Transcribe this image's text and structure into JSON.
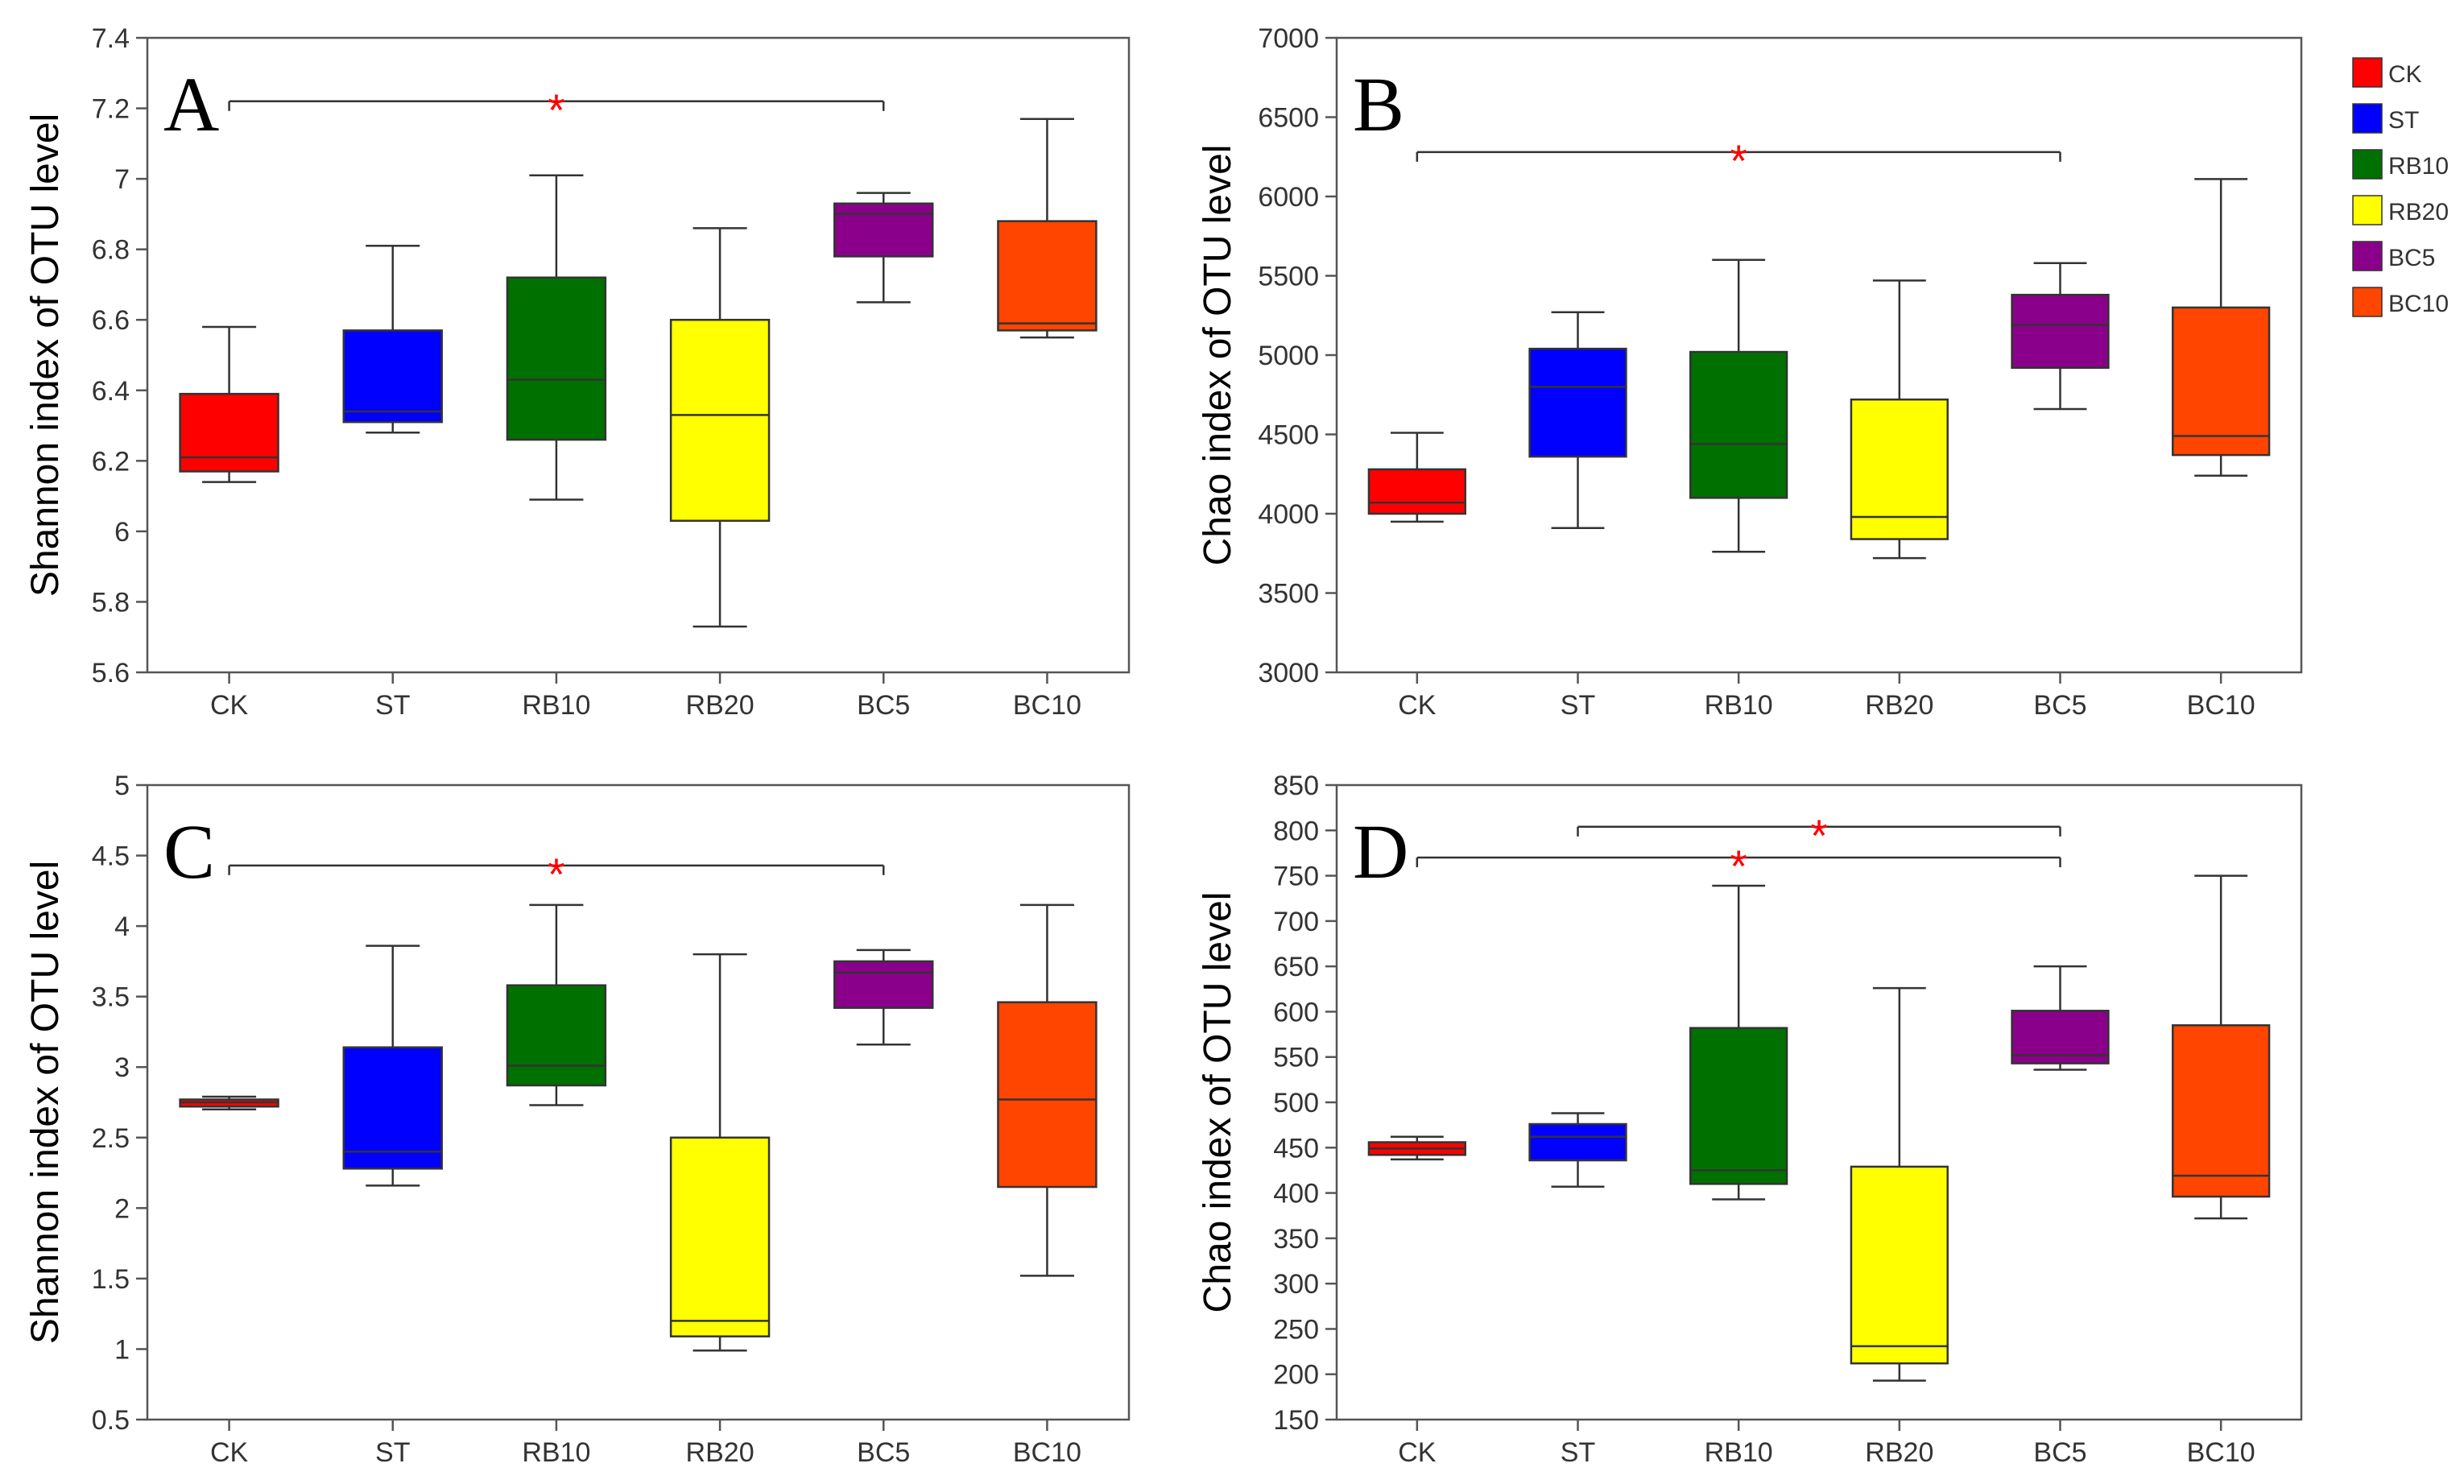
{
  "chart_data": [
    {
      "type": "box",
      "panel": "A",
      "ylabel": "Shannon index of OTU level",
      "categories": [
        "CK",
        "ST",
        "RB10",
        "RB20",
        "BC5",
        "BC10"
      ],
      "ylim": [
        5.6,
        7.4
      ],
      "yticks": [
        5.6,
        5.8,
        6,
        6.2,
        6.4,
        6.6,
        6.8,
        7,
        7.2,
        7.4
      ],
      "boxes": [
        {
          "min": 6.14,
          "q1": 6.17,
          "median": 6.21,
          "q3": 6.39,
          "max": 6.58
        },
        {
          "min": 6.28,
          "q1": 6.31,
          "median": 6.34,
          "q3": 6.57,
          "max": 6.81
        },
        {
          "min": 6.09,
          "q1": 6.26,
          "median": 6.43,
          "q3": 6.72,
          "max": 7.01
        },
        {
          "min": 5.73,
          "q1": 6.03,
          "median": 6.33,
          "q3": 6.6,
          "max": 6.86
        },
        {
          "min": 6.65,
          "q1": 6.78,
          "median": 6.9,
          "q3": 6.93,
          "max": 6.96
        },
        {
          "min": 6.55,
          "q1": 6.57,
          "median": 6.59,
          "q3": 6.88,
          "max": 7.17
        }
      ],
      "significance": [
        {
          "from": "CK",
          "to": "BC5",
          "y": 7.22,
          "symbol": "*"
        }
      ]
    },
    {
      "type": "box",
      "panel": "B",
      "ylabel": "Chao index of OTU level",
      "categories": [
        "CK",
        "ST",
        "RB10",
        "RB20",
        "BC5",
        "BC10"
      ],
      "ylim": [
        3000,
        7000
      ],
      "yticks": [
        3000,
        3500,
        4000,
        4500,
        5000,
        5500,
        6000,
        6500,
        7000
      ],
      "boxes": [
        {
          "min": 3950,
          "q1": 4000,
          "median": 4070,
          "q3": 4280,
          "max": 4510
        },
        {
          "min": 3910,
          "q1": 4360,
          "median": 4800,
          "q3": 5040,
          "max": 5270
        },
        {
          "min": 3760,
          "q1": 4100,
          "median": 4440,
          "q3": 5020,
          "max": 5600
        },
        {
          "min": 3720,
          "q1": 3840,
          "median": 3980,
          "q3": 4720,
          "max": 5470
        },
        {
          "min": 4660,
          "q1": 4920,
          "median": 5190,
          "q3": 5380,
          "max": 5580
        },
        {
          "min": 4240,
          "q1": 4370,
          "median": 4490,
          "q3": 5300,
          "max": 6110
        }
      ],
      "significance": [
        {
          "from": "CK",
          "to": "BC5",
          "y": 6280,
          "symbol": "*"
        }
      ]
    },
    {
      "type": "box",
      "panel": "C",
      "ylabel": "Shannon index of OTU level",
      "categories": [
        "CK",
        "ST",
        "RB10",
        "RB20",
        "BC5",
        "BC10"
      ],
      "ylim": [
        0.5,
        5
      ],
      "yticks": [
        0.5,
        1,
        1.5,
        2,
        2.5,
        3,
        3.5,
        4,
        4.5,
        5
      ],
      "boxes": [
        {
          "min": 2.7,
          "q1": 2.72,
          "median": 2.75,
          "q3": 2.77,
          "max": 2.79
        },
        {
          "min": 2.16,
          "q1": 2.28,
          "median": 2.4,
          "q3": 3.14,
          "max": 3.86
        },
        {
          "min": 2.73,
          "q1": 2.87,
          "median": 3.01,
          "q3": 3.58,
          "max": 4.15
        },
        {
          "min": 0.99,
          "q1": 1.09,
          "median": 1.2,
          "q3": 2.5,
          "max": 3.8
        },
        {
          "min": 3.16,
          "q1": 3.42,
          "median": 3.67,
          "q3": 3.75,
          "max": 3.83
        },
        {
          "min": 1.52,
          "q1": 2.15,
          "median": 2.77,
          "q3": 3.46,
          "max": 4.15
        }
      ],
      "significance": [
        {
          "from": "CK",
          "to": "BC5",
          "y": 4.43,
          "symbol": "*"
        }
      ]
    },
    {
      "type": "box",
      "panel": "D",
      "ylabel": "Chao index of OTU level",
      "categories": [
        "CK",
        "ST",
        "RB10",
        "RB20",
        "BC5",
        "BC10"
      ],
      "ylim": [
        150,
        850
      ],
      "yticks": [
        150,
        200,
        250,
        300,
        350,
        400,
        450,
        500,
        550,
        600,
        650,
        700,
        750,
        800,
        850
      ],
      "boxes": [
        {
          "min": 437,
          "q1": 442,
          "median": 449,
          "q3": 456,
          "max": 462
        },
        {
          "min": 407,
          "q1": 436,
          "median": 462,
          "q3": 476,
          "max": 488
        },
        {
          "min": 393,
          "q1": 410,
          "median": 425,
          "q3": 582,
          "max": 739
        },
        {
          "min": 193,
          "q1": 212,
          "median": 231,
          "q3": 429,
          "max": 626
        },
        {
          "min": 536,
          "q1": 543,
          "median": 552,
          "q3": 601,
          "max": 650
        },
        {
          "min": 372,
          "q1": 396,
          "median": 419,
          "q3": 585,
          "max": 750
        }
      ],
      "significance": [
        {
          "from": "ST",
          "to": "BC5",
          "y": 804,
          "symbol": "*"
        },
        {
          "from": "CK",
          "to": "BC5",
          "y": 770,
          "symbol": "*"
        }
      ]
    }
  ],
  "legend": [
    {
      "label": "CK",
      "color": "#ff0000"
    },
    {
      "label": "ST",
      "color": "#0000ff"
    },
    {
      "label": "RB10",
      "color": "#007000"
    },
    {
      "label": "RB20",
      "color": "#ffff00"
    },
    {
      "label": "BC5",
      "color": "#8b008b"
    },
    {
      "label": "BC10",
      "color": "#ff4500"
    }
  ],
  "colors": {
    "CK": "#ff0000",
    "ST": "#0000ff",
    "RB10": "#007000",
    "RB20": "#ffff00",
    "BC5": "#8b008b",
    "BC10": "#ff4500",
    "significance": "#ff0000"
  }
}
